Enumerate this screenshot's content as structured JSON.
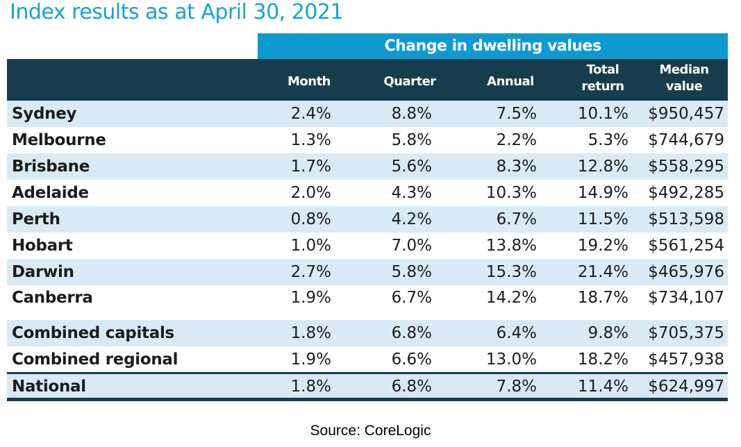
{
  "title": "Index results as at April 30, 2021",
  "table": {
    "group_header": "Change in dwelling values",
    "columns": [
      {
        "line1": "Month",
        "line2": ""
      },
      {
        "line1": "Quarter",
        "line2": ""
      },
      {
        "line1": "Annual",
        "line2": ""
      },
      {
        "line1": "Total",
        "line2": "return"
      },
      {
        "line1": "Median",
        "line2": "value"
      }
    ],
    "rows": [
      {
        "name": "Sydney",
        "cells": [
          "2.4%",
          "8.8%",
          "7.5%",
          "10.1%",
          "$950,457"
        ]
      },
      {
        "name": "Melbourne",
        "cells": [
          "1.3%",
          "5.8%",
          "2.2%",
          "5.3%",
          "$744,679"
        ]
      },
      {
        "name": "Brisbane",
        "cells": [
          "1.7%",
          "5.6%",
          "8.3%",
          "12.8%",
          "$558,295"
        ]
      },
      {
        "name": "Adelaide",
        "cells": [
          "2.0%",
          "4.3%",
          "10.3%",
          "14.9%",
          "$492,285"
        ]
      },
      {
        "name": "Perth",
        "cells": [
          "0.8%",
          "4.2%",
          "6.7%",
          "11.5%",
          "$513,598"
        ]
      },
      {
        "name": "Hobart",
        "cells": [
          "1.0%",
          "7.0%",
          "13.8%",
          "19.2%",
          "$561,254"
        ]
      },
      {
        "name": "Darwin",
        "cells": [
          "2.7%",
          "5.8%",
          "15.3%",
          "21.4%",
          "$465,976"
        ]
      },
      {
        "name": "Canberra",
        "cells": [
          "1.9%",
          "6.7%",
          "14.2%",
          "18.7%",
          "$734,107"
        ]
      },
      {
        "name": "Combined capitals",
        "cells": [
          "1.8%",
          "6.8%",
          "6.4%",
          "9.8%",
          "$705,375"
        ]
      },
      {
        "name": "Combined regional",
        "cells": [
          "1.9%",
          "6.6%",
          "13.0%",
          "18.2%",
          "$457,938"
        ]
      },
      {
        "name": "National",
        "cells": [
          "1.8%",
          "6.8%",
          "7.8%",
          "11.4%",
          "$624,997"
        ]
      }
    ]
  },
  "source": "Source: CoreLogic",
  "colors": {
    "title": "#12a3d8",
    "group_header_bg": "#0e9ad1",
    "column_header_bg": "#173c4e",
    "row_shade": "#d9eaf7"
  },
  "chart_data": {
    "type": "table",
    "title": "Index results as at April 30, 2021",
    "column_group": "Change in dwelling values",
    "columns": [
      "Month",
      "Quarter",
      "Annual",
      "Total return",
      "Median value"
    ],
    "rows": [
      {
        "region": "Sydney",
        "values": [
          "2.4%",
          "8.8%",
          "7.5%",
          "10.1%",
          "$950,457"
        ]
      },
      {
        "region": "Melbourne",
        "values": [
          "1.3%",
          "5.8%",
          "2.2%",
          "5.3%",
          "$744,679"
        ]
      },
      {
        "region": "Brisbane",
        "values": [
          "1.7%",
          "5.6%",
          "8.3%",
          "12.8%",
          "$558,295"
        ]
      },
      {
        "region": "Adelaide",
        "values": [
          "2.0%",
          "4.3%",
          "10.3%",
          "14.9%",
          "$492,285"
        ]
      },
      {
        "region": "Perth",
        "values": [
          "0.8%",
          "4.2%",
          "6.7%",
          "11.5%",
          "$513,598"
        ]
      },
      {
        "region": "Hobart",
        "values": [
          "1.0%",
          "7.0%",
          "13.8%",
          "19.2%",
          "$561,254"
        ]
      },
      {
        "region": "Darwin",
        "values": [
          "2.7%",
          "5.8%",
          "15.3%",
          "21.4%",
          "$465,976"
        ]
      },
      {
        "region": "Canberra",
        "values": [
          "1.9%",
          "6.7%",
          "14.2%",
          "18.7%",
          "$734,107"
        ]
      },
      {
        "region": "Combined capitals",
        "values": [
          "1.8%",
          "6.8%",
          "6.4%",
          "9.8%",
          "$705,375"
        ]
      },
      {
        "region": "Combined regional",
        "values": [
          "1.9%",
          "6.6%",
          "13.0%",
          "18.2%",
          "$457,938"
        ]
      },
      {
        "region": "National",
        "values": [
          "1.8%",
          "6.8%",
          "7.8%",
          "11.4%",
          "$624,997"
        ]
      }
    ],
    "source": "Source: CoreLogic"
  }
}
